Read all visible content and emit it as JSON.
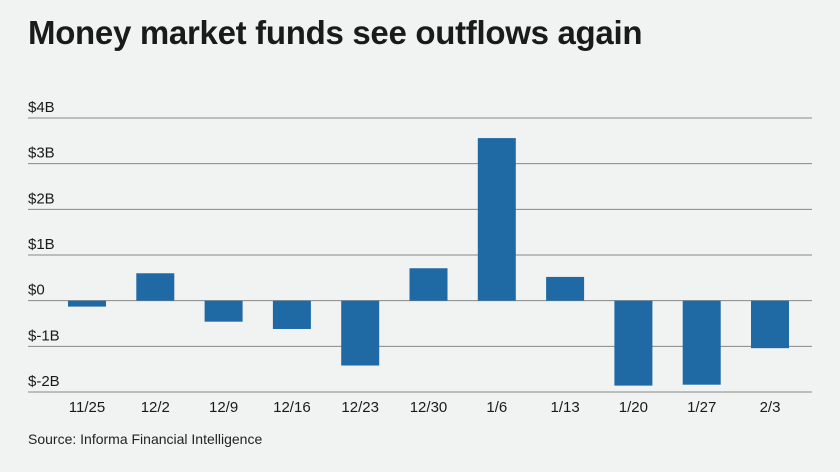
{
  "title": "Money market funds see outflows again",
  "source": "Source: Informa Financial Intelligence",
  "colors": {
    "bar": "#1f6aa5",
    "grid": "#888888",
    "background": "#f1f2f2"
  },
  "chart_data": {
    "type": "bar",
    "title": "Money market funds see outflows again",
    "xlabel": "",
    "ylabel": "",
    "ylim": [
      -2,
      4
    ],
    "yticks": [
      4,
      3,
      2,
      1,
      0,
      -1,
      -2
    ],
    "ytick_labels": [
      "$4B",
      "$3B",
      "$2B",
      "$1B",
      "$0",
      "$-1B",
      "$-2B"
    ],
    "grid": true,
    "legend": "none",
    "categories": [
      "11/25",
      "12/2",
      "12/9",
      "12/16",
      "12/23",
      "12/30",
      "1/6",
      "1/13",
      "1/20",
      "1/27",
      "2/3"
    ],
    "values": [
      -0.13,
      0.6,
      -0.46,
      -0.62,
      -1.42,
      0.71,
      3.56,
      0.52,
      -1.86,
      -1.84,
      -1.04
    ]
  }
}
